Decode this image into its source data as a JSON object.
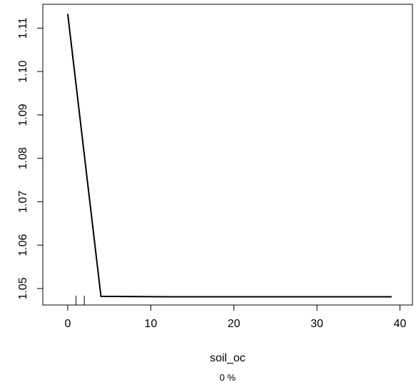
{
  "chart_data": {
    "type": "line",
    "title": "",
    "xlabel": "soil_oc",
    "ylabel": "",
    "subtitle": "0 %",
    "xlim": [
      -3,
      41.5
    ],
    "ylim": [
      1.0462,
      1.1155
    ],
    "x_ticks": [
      0,
      10,
      20,
      30,
      40
    ],
    "y_ticks": [
      1.05,
      1.06,
      1.07,
      1.08,
      1.09,
      1.1,
      1.11
    ],
    "x_tick_labels": [
      "0",
      "10",
      "20",
      "30",
      "40"
    ],
    "y_tick_labels": [
      "1.05",
      "1.06",
      "1.07",
      "1.08",
      "1.09",
      "1.10",
      "1.11"
    ],
    "grid": false,
    "series": [
      {
        "x": [
          0,
          4,
          12,
          39
        ],
        "y": [
          1.1133,
          1.0482,
          1.0481,
          1.0481
        ]
      }
    ],
    "rug": [
      1,
      2
    ]
  }
}
